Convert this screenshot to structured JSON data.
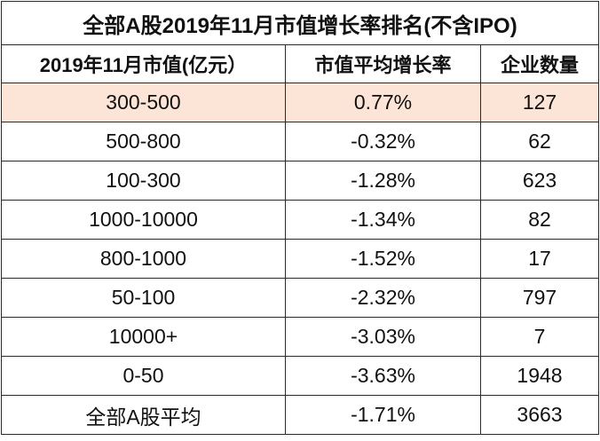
{
  "title": "全部A股2019年11月市值增长率排名(不含IPO)",
  "headers": [
    "2019年11月市值(亿元）",
    "市值平均增长率",
    "企业数量"
  ],
  "highlight_color": "#fce4d6",
  "rows": [
    {
      "range": "300-500",
      "growth": "0.77%",
      "count": "127"
    },
    {
      "range": "500-800",
      "growth": "-0.32%",
      "count": "62"
    },
    {
      "range": "100-300",
      "growth": "-1.28%",
      "count": "623"
    },
    {
      "range": "1000-10000",
      "growth": "-1.34%",
      "count": "82"
    },
    {
      "range": "800-1000",
      "growth": "-1.52%",
      "count": "17"
    },
    {
      "range": "50-100",
      "growth": "-2.32%",
      "count": "797"
    },
    {
      "range": "10000+",
      "growth": "-3.03%",
      "count": "7"
    },
    {
      "range": "0-50",
      "growth": "-3.63%",
      "count": "1948"
    },
    {
      "range": "全部A股平均",
      "growth": "-1.71%",
      "count": "3663"
    }
  ]
}
